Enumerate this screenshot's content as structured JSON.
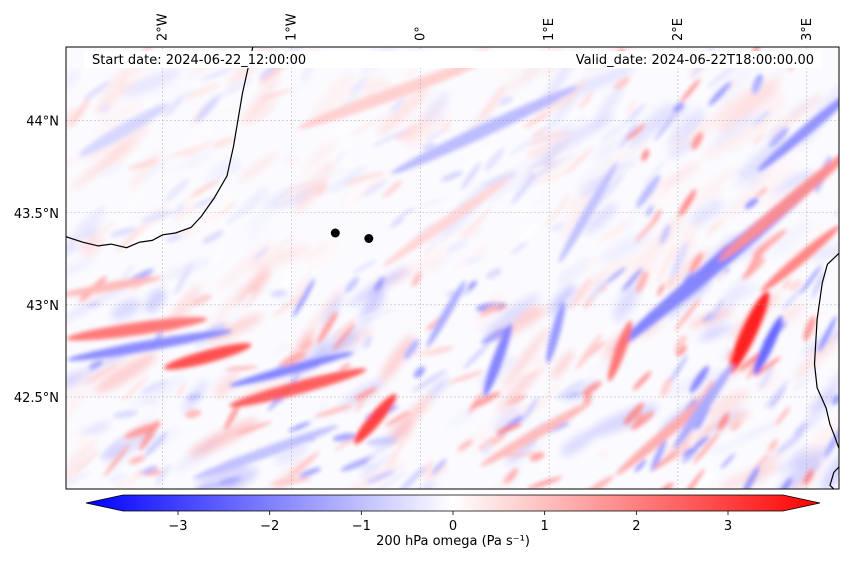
{
  "header": {
    "start_date": "Start date: 2024-06-22_12:00:00",
    "valid_date": "Valid_date: 2024-06-22T18:00:00.00"
  },
  "map": {
    "lon_range": [
      -2.75,
      3.25
    ],
    "lat_range": [
      42.0,
      44.4
    ],
    "longitude_ticks": [
      {
        "value": -2,
        "label": "2°W"
      },
      {
        "value": -1,
        "label": "1°W"
      },
      {
        "value": 0,
        "label": "0°"
      },
      {
        "value": 1,
        "label": "1°E"
      },
      {
        "value": 2,
        "label": "2°E"
      },
      {
        "value": 3,
        "label": "3°E"
      }
    ],
    "latitude_ticks": [
      {
        "value": 44.0,
        "label": "44°N"
      },
      {
        "value": 43.5,
        "label": "43.5°N"
      },
      {
        "value": 43.0,
        "label": "43°N"
      },
      {
        "value": 42.5,
        "label": "42.5°N"
      }
    ],
    "markers": [
      {
        "lon": -0.66,
        "lat": 43.39
      },
      {
        "lon": -0.4,
        "lat": 43.36
      }
    ],
    "coastline_west": [
      [
        -2.75,
        43.37
      ],
      [
        -2.62,
        43.34
      ],
      [
        -2.5,
        43.32
      ],
      [
        -2.4,
        43.33
      ],
      [
        -2.28,
        43.31
      ],
      [
        -2.18,
        43.34
      ],
      [
        -2.08,
        43.35
      ],
      [
        -2.0,
        43.38
      ],
      [
        -1.9,
        43.39
      ],
      [
        -1.78,
        43.42
      ],
      [
        -1.7,
        43.48
      ],
      [
        -1.6,
        43.58
      ],
      [
        -1.5,
        43.7
      ],
      [
        -1.45,
        43.86
      ],
      [
        -1.38,
        44.15
      ],
      [
        -1.3,
        44.4
      ]
    ],
    "coastline_east": [
      [
        3.25,
        43.28
      ],
      [
        3.16,
        43.22
      ],
      [
        3.12,
        43.12
      ],
      [
        3.1,
        43.02
      ],
      [
        3.08,
        42.92
      ],
      [
        3.07,
        42.8
      ],
      [
        3.06,
        42.68
      ],
      [
        3.08,
        42.55
      ],
      [
        3.15,
        42.44
      ],
      [
        3.18,
        42.35
      ],
      [
        3.22,
        42.28
      ],
      [
        3.25,
        42.22
      ]
    ],
    "coastline_east_tail": [
      [
        3.25,
        42.12
      ],
      [
        3.21,
        42.09
      ],
      [
        3.18,
        42.02
      ],
      [
        3.21,
        42.0
      ]
    ],
    "colors": {
      "negative": "#0000ff",
      "neutral": "#ffffff",
      "positive": "#ff0000",
      "coastline": "#000000",
      "gridline": "#9e9e9e"
    }
  },
  "field_features": [
    {
      "lon": 2.35,
      "lat": 43.25,
      "len_deg": 2.2,
      "angle": -40,
      "width_deg": 0.06,
      "value": -1.8
    },
    {
      "lon": 2.85,
      "lat": 43.55,
      "len_deg": 1.4,
      "angle": -40,
      "width_deg": 0.05,
      "value": 1.6
    },
    {
      "lon": 2.55,
      "lat": 42.85,
      "len_deg": 0.7,
      "angle": -65,
      "width_deg": 0.06,
      "value": 3.3
    },
    {
      "lon": 2.7,
      "lat": 42.78,
      "len_deg": 0.5,
      "angle": -65,
      "width_deg": 0.04,
      "value": -2.2
    },
    {
      "lon": 3.0,
      "lat": 43.95,
      "len_deg": 1.0,
      "angle": -40,
      "width_deg": 0.04,
      "value": -1.6
    },
    {
      "lon": 2.95,
      "lat": 43.25,
      "len_deg": 0.8,
      "angle": -40,
      "width_deg": 0.04,
      "value": 1.8
    },
    {
      "lon": -2.2,
      "lat": 42.87,
      "len_deg": 1.1,
      "angle": -8,
      "width_deg": 0.05,
      "value": 2.0
    },
    {
      "lon": -2.1,
      "lat": 42.78,
      "len_deg": 1.3,
      "angle": -10,
      "width_deg": 0.04,
      "value": -1.7
    },
    {
      "lon": -1.65,
      "lat": 42.72,
      "len_deg": 0.7,
      "angle": -15,
      "width_deg": 0.05,
      "value": 2.6
    },
    {
      "lon": -0.95,
      "lat": 42.55,
      "len_deg": 1.1,
      "angle": -15,
      "width_deg": 0.05,
      "value": 2.4
    },
    {
      "lon": -1.0,
      "lat": 42.65,
      "len_deg": 1.0,
      "angle": -15,
      "width_deg": 0.035,
      "value": -1.8
    },
    {
      "lon": -0.35,
      "lat": 42.38,
      "len_deg": 0.5,
      "angle": -50,
      "width_deg": 0.05,
      "value": 2.8
    },
    {
      "lon": 0.6,
      "lat": 42.7,
      "len_deg": 0.6,
      "angle": -70,
      "width_deg": 0.04,
      "value": -1.8
    },
    {
      "lon": 1.55,
      "lat": 42.75,
      "len_deg": 0.5,
      "angle": -70,
      "width_deg": 0.04,
      "value": 2.0
    },
    {
      "lon": 1.05,
      "lat": 42.85,
      "len_deg": 0.5,
      "angle": -75,
      "width_deg": 0.035,
      "value": -1.5
    },
    {
      "lon": 0.2,
      "lat": 42.95,
      "len_deg": 0.6,
      "angle": -60,
      "width_deg": 0.03,
      "value": -1.2
    },
    {
      "lon": 0.5,
      "lat": 43.95,
      "len_deg": 1.6,
      "angle": -25,
      "width_deg": 0.05,
      "value": -1.0
    },
    {
      "lon": -0.2,
      "lat": 44.15,
      "len_deg": 1.6,
      "angle": -20,
      "width_deg": 0.05,
      "value": 0.7
    },
    {
      "lon": -2.3,
      "lat": 43.95,
      "len_deg": 0.8,
      "angle": -30,
      "width_deg": 0.05,
      "value": -0.6
    },
    {
      "lon": -1.2,
      "lat": 42.2,
      "len_deg": 1.2,
      "angle": -20,
      "width_deg": 0.04,
      "value": -0.9
    },
    {
      "lon": 0.9,
      "lat": 42.3,
      "len_deg": 1.0,
      "angle": -30,
      "width_deg": 0.04,
      "value": 1.0
    },
    {
      "lon": 1.9,
      "lat": 42.3,
      "len_deg": 1.0,
      "angle": -40,
      "width_deg": 0.04,
      "value": 1.2
    },
    {
      "lon": 1.3,
      "lat": 43.5,
      "len_deg": 0.9,
      "angle": -60,
      "width_deg": 0.035,
      "value": -0.9
    },
    {
      "lon": 0.2,
      "lat": 43.45,
      "len_deg": 1.2,
      "angle": -35,
      "width_deg": 0.04,
      "value": 0.6
    },
    {
      "lon": -2.4,
      "lat": 43.1,
      "len_deg": 0.8,
      "angle": -10,
      "width_deg": 0.035,
      "value": 1.0
    },
    {
      "lon": 2.2,
      "lat": 42.45,
      "len_deg": 0.8,
      "angle": -55,
      "width_deg": 0.04,
      "value": -1.2
    }
  ],
  "colorbar": {
    "label": "200 hPa omega (Pa s⁻¹)",
    "vmin": -3.6,
    "vmax": 3.6,
    "ticks": [
      {
        "value": -3,
        "label": "−3"
      },
      {
        "value": -2,
        "label": "−2"
      },
      {
        "value": -1,
        "label": "−1"
      },
      {
        "value": 0,
        "label": "0"
      },
      {
        "value": 1,
        "label": "1"
      },
      {
        "value": 2,
        "label": "2"
      },
      {
        "value": 3,
        "label": "3"
      }
    ],
    "extend": "both"
  }
}
